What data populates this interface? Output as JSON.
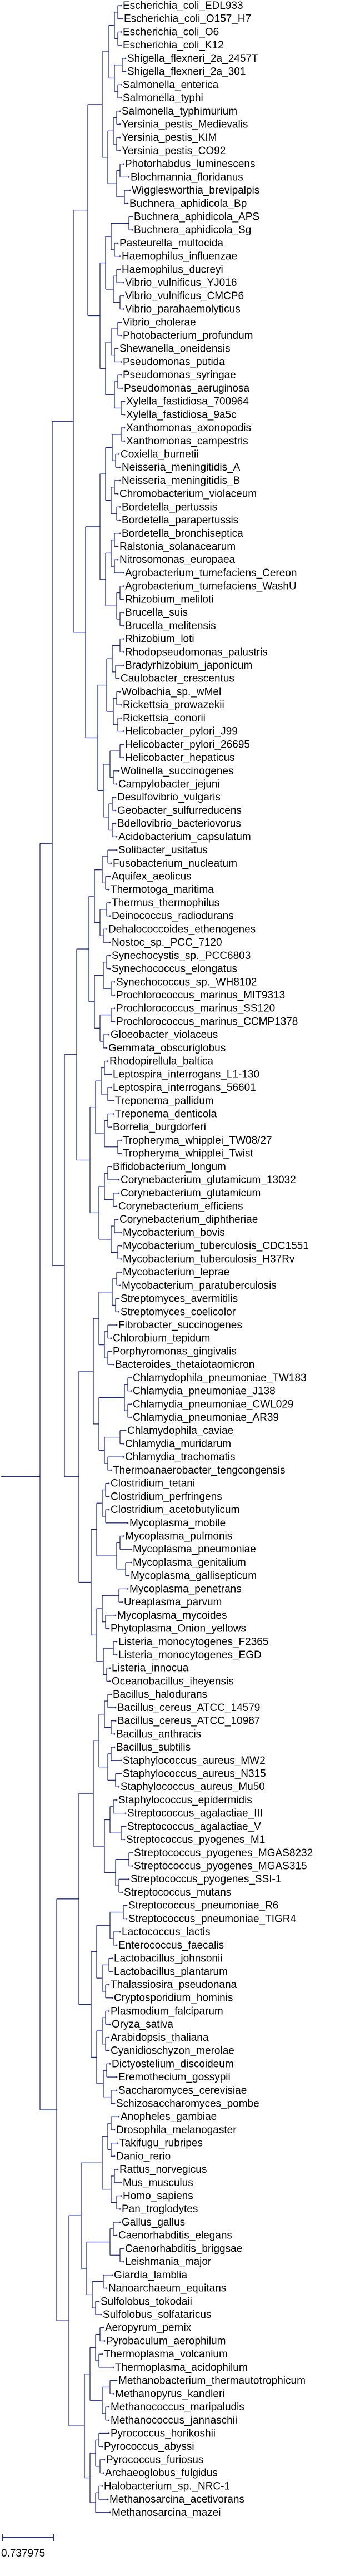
{
  "tree": {
    "leaves": [
      "Escherichia_coli_EDL933",
      "Escherichia_coli_O157_H7",
      "Escherichia_coli_O6",
      "Escherichia_coli_K12",
      "Shigella_flexneri_2a_2457T",
      "Shigella_flexneri_2a_301",
      "Salmonella_enterica",
      "Salmonella_typhi",
      "Salmonella_typhimurium",
      "Yersinia_pestis_Medievalis",
      "Yersinia_pestis_KIM",
      "Yersinia_pestis_CO92",
      "Photorhabdus_luminescens",
      "Blochmannia_floridanus",
      "Wigglesworthia_brevipalpis",
      "Buchnera_aphidicola_Bp",
      "Buchnera_aphidicola_APS",
      "Buchnera_aphidicola_Sg",
      "Pasteurella_multocida",
      "Haemophilus_influenzae",
      "Haemophilus_ducreyi",
      "Vibrio_vulnificus_YJ016",
      "Vibrio_vulnificus_CMCP6",
      "Vibrio_parahaemolyticus",
      "Vibrio_cholerae",
      "Photobacterium_profundum",
      "Shewanella_oneidensis",
      "Pseudomonas_putida",
      "Pseudomonas_syringae",
      "Pseudomonas_aeruginosa",
      "Xylella_fastidiosa_700964",
      "Xylella_fastidiosa_9a5c",
      "Xanthomonas_axonopodis",
      "Xanthomonas_campestris",
      "Coxiella_burnetii",
      "Neisseria_meningitidis_A",
      "Neisseria_meningitidis_B",
      "Chromobacterium_violaceum",
      "Bordetella_pertussis",
      "Bordetella_parapertussis",
      "Bordetella_bronchiseptica",
      "Ralstonia_solanacearum",
      "Nitrosomonas_europaea",
      "Agrobacterium_tumefaciens_Cereon",
      "Agrobacterium_tumefaciens_WashU",
      "Rhizobium_meliloti",
      "Brucella_suis",
      "Brucella_melitensis",
      "Rhizobium_loti",
      "Rhodopseudomonas_palustris",
      "Bradyrhizobium_japonicum",
      "Caulobacter_crescentus",
      "Wolbachia_sp._wMel",
      "Rickettsia_prowazekii",
      "Rickettsia_conorii",
      "Helicobacter_pylori_J99",
      "Helicobacter_pylori_26695",
      "Helicobacter_hepaticus",
      "Wolinella_succinogenes",
      "Campylobacter_jejuni",
      "Desulfovibrio_vulgaris",
      "Geobacter_sulfurreducens",
      "Bdellovibrio_bacteriovorus",
      "Acidobacterium_capsulatum",
      "Solibacter_usitatus",
      "Fusobacterium_nucleatum",
      "Aquifex_aeolicus",
      "Thermotoga_maritima",
      "Thermus_thermophilus",
      "Deinococcus_radiodurans",
      "Dehalococcoides_ethenogenes",
      "Nostoc_sp._PCC_7120",
      "Synechocystis_sp._PCC6803",
      "Synechococcus_elongatus",
      "Synechococcus_sp._WH8102",
      "Prochlorococcus_marinus_MIT9313",
      "Prochlorococcus_marinus_SS120",
      "Prochlorococcus_marinus_CCMP1378",
      "Gloeobacter_violaceus",
      "Gemmata_obscuriglobus",
      "Rhodopirellula_baltica",
      "Leptospira_interrogans_L1-130",
      "Leptospira_interrogans_56601",
      "Treponema_pallidum",
      "Treponema_denticola",
      "Borrelia_burgdorferi",
      "Tropheryma_whipplei_TW08/27",
      "Tropheryma_whipplei_Twist",
      "Bifidobacterium_longum",
      "Corynebacterium_glutamicum_13032",
      "Corynebacterium_glutamicum",
      "Corynebacterium_efficiens",
      "Corynebacterium_diphtheriae",
      "Mycobacterium_bovis",
      "Mycobacterium_tuberculosis_CDC1551",
      "Mycobacterium_tuberculosis_H37Rv",
      "Mycobacterium_leprae",
      "Mycobacterium_paratuberculosis",
      "Streptomyces_avermitilis",
      "Streptomyces_coelicolor",
      "Fibrobacter_succinogenes",
      "Chlorobium_tepidum",
      "Porphyromonas_gingivalis",
      "Bacteroides_thetaiotaomicron",
      "Chlamydophila_pneumoniae_TW183",
      "Chlamydia_pneumoniae_J138",
      "Chlamydia_pneumoniae_CWL029",
      "Chlamydia_pneumoniae_AR39",
      "Chlamydophila_caviae",
      "Chlamydia_muridarum",
      "Chlamydia_trachomatis",
      "Thermoanaerobacter_tengcongensis",
      "Clostridium_tetani",
      "Clostridium_perfringens",
      "Clostridium_acetobutylicum",
      "Mycoplasma_mobile",
      "Mycoplasma_pulmonis",
      "Mycoplasma_pneumoniae",
      "Mycoplasma_genitalium",
      "Mycoplasma_gallisepticum",
      "Mycoplasma_penetrans",
      "Ureaplasma_parvum",
      "Mycoplasma_mycoides",
      "Phytoplasma_Onion_yellows",
      "Listeria_monocytogenes_F2365",
      "Listeria_monocytogenes_EGD",
      "Listeria_innocua",
      "Oceanobacillus_iheyensis",
      "Bacillus_halodurans",
      "Bacillus_cereus_ATCC_14579",
      "Bacillus_cereus_ATCC_10987",
      "Bacillus_anthracis",
      "Bacillus_subtilis",
      "Staphylococcus_aureus_MW2",
      "Staphylococcus_aureus_N315",
      "Staphylococcus_aureus_Mu50",
      "Staphylococcus_epidermidis",
      "Streptococcus_agalactiae_III",
      "Streptococcus_agalactiae_V",
      "Streptococcus_pyogenes_M1",
      "Streptococcus_pyogenes_MGAS8232",
      "Streptococcus_pyogenes_MGAS315",
      "Streptococcus_pyogenes_SSI-1",
      "Streptococcus_mutans",
      "Streptococcus_pneumoniae_R6",
      "Streptococcus_pneumoniae_TIGR4",
      "Lactococcus_lactis",
      "Enterococcus_faecalis",
      "Lactobacillus_johnsonii",
      "Lactobacillus_plantarum",
      "Thalassiosira_pseudonana",
      "Cryptosporidium_hominis",
      "Plasmodium_falciparum",
      "Oryza_sativa",
      "Arabidopsis_thaliana",
      "Cyanidioschyzon_merolae",
      "Dictyostelium_discoideum",
      "Eremothecium_gossypii",
      "Saccharomyces_cerevisiae",
      "Schizosaccharomyces_pombe",
      "Anopheles_gambiae",
      "Drosophila_melanogaster",
      "Takifugu_rubripes",
      "Danio_rerio",
      "Rattus_norvegicus",
      "Mus_musculus",
      "Homo_sapiens",
      "Pan_troglodytes",
      "Gallus_gallus",
      "Caenorhabditis_elegans",
      "Caenorhabditis_briggsae",
      "Leishmania_major",
      "Giardia_lamblia",
      "Nanoarchaeum_equitans",
      "Sulfolobus_tokodaii",
      "Sulfolobus_solfataricus",
      "Aeropyrum_pernix",
      "Pyrobaculum_aerophilum",
      "Thermoplasma_volcanium",
      "Thermoplasma_acidophilum",
      "Methanobacterium_thermautotrophicum",
      "Methanopyrus_kandleri",
      "Methanococcus_maripaludis",
      "Methanococcus_jannaschii",
      "Pyrococcus_horikoshii",
      "Pyrococcus_abyssi",
      "Pyrococcus_furiosus",
      "Archaeoglobus_fulgidus",
      "Halobacterium_sp._NRC-1",
      "Methanosarcina_acetivorans",
      "Methanosarcina_mazei"
    ]
  },
  "scale_bar": {
    "label": "0.737975"
  },
  "colors": {
    "branch": "#1f2a8a",
    "text": "#000000"
  }
}
